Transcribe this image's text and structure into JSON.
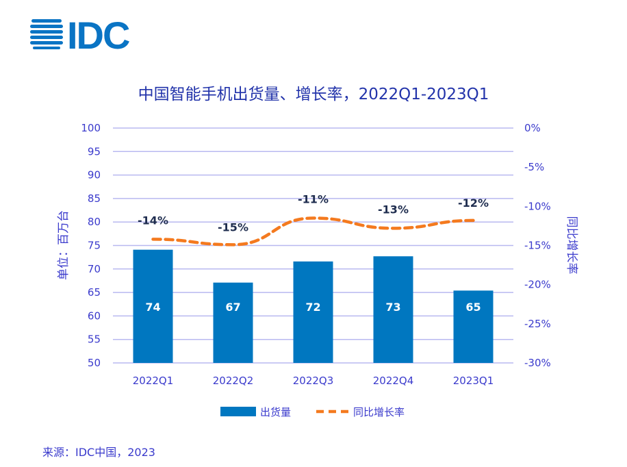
{
  "logo_text": "IDC",
  "chart_data": {
    "type": "bar+line",
    "title": "中国智能手机出货量、增长率，2022Q1-2023Q1",
    "categories": [
      "2022Q1",
      "2022Q2",
      "2022Q3",
      "2022Q4",
      "2023Q1"
    ],
    "series": [
      {
        "name": "出货量",
        "type": "bar",
        "axis": "left",
        "color": "#0077c0",
        "values": [
          74.1,
          67.1,
          71.6,
          72.7,
          65.4
        ],
        "labels": [
          "74",
          "67",
          "72",
          "73",
          "65"
        ]
      },
      {
        "name": "同比增长率",
        "type": "line",
        "style": "dashed",
        "axis": "right",
        "color": "#f47a1f",
        "values": [
          -14.2,
          -14.9,
          -11.5,
          -12.8,
          -11.8
        ],
        "labels": [
          "-14%",
          "-15%",
          "-11%",
          "-13%",
          "-12%"
        ]
      }
    ],
    "ylabel": "单位：百万台",
    "y2label": "同比增长率",
    "ylim": [
      50,
      100
    ],
    "y2lim": [
      -30,
      0
    ],
    "yticks": [
      "50",
      "55",
      "60",
      "65",
      "70",
      "75",
      "80",
      "85",
      "90",
      "95",
      "100"
    ],
    "y2ticks": [
      "-30%",
      "-25%",
      "-20%",
      "-15%",
      "-10%",
      "-5%",
      "0%"
    ],
    "grid": true,
    "grid_color": "#b8b8f0",
    "legend": "bottom"
  },
  "source": "来源：IDC中国，2023"
}
